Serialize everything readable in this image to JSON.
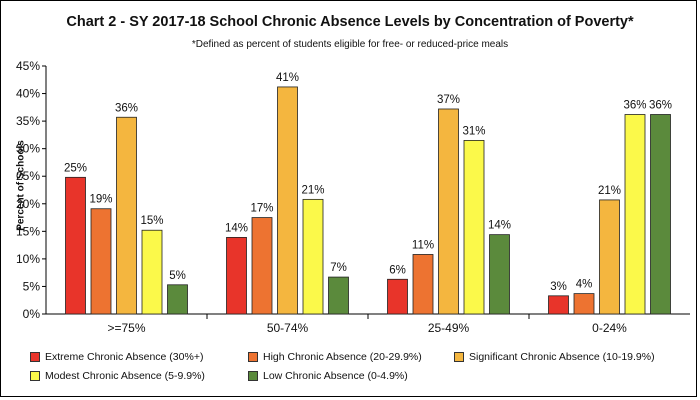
{
  "chart_data": {
    "type": "bar",
    "title": "Chart 2 - SY 2017-18 School Chronic Absence Levels by Concentration of Poverty*",
    "subtitle": "*Defined as percent of students eligible for free- or reduced-price meals",
    "ylabel": "Percent of Schools",
    "xlabel": "",
    "ylim": [
      0,
      45
    ],
    "yticks": [
      "0%",
      "5%",
      "10%",
      "15%",
      "20%",
      "25%",
      "30%",
      "35%",
      "40%",
      "45%"
    ],
    "grid": false,
    "legend_position": "bottom",
    "categories": [
      ">=75%",
      "50-74%",
      "25-49%",
      "0-24%"
    ],
    "series": [
      {
        "name": "Extreme Chronic Absence (30%+)",
        "color": "#E8342A",
        "values": [
          24.8,
          13.9,
          6.3,
          3.3
        ],
        "labels": [
          "25%",
          "14%",
          "6%",
          "3%"
        ]
      },
      {
        "name": "High Chronic Absence (20-29.9%)",
        "color": "#ED7331",
        "values": [
          19.1,
          17.5,
          10.8,
          3.7
        ],
        "labels": [
          "19%",
          "17%",
          "11%",
          "4%"
        ]
      },
      {
        "name": "Significant Chronic Absence (10-19.9%)",
        "color": "#F4B63F",
        "values": [
          35.7,
          41.2,
          37.2,
          20.7
        ],
        "labels": [
          "36%",
          "41%",
          "37%",
          "21%"
        ]
      },
      {
        "name": "Modest Chronic Absence (5-9.9%)",
        "color": "#FBF94A",
        "values": [
          15.2,
          20.8,
          31.5,
          36.2
        ],
        "labels": [
          "15%",
          "21%",
          "31%",
          "36%"
        ]
      },
      {
        "name": "Low Chronic Absence (0-4.9%)",
        "color": "#5B8A3C",
        "values": [
          5.3,
          6.7,
          14.4,
          36.2
        ],
        "labels": [
          "5%",
          "7%",
          "14%",
          "36%"
        ]
      }
    ]
  }
}
